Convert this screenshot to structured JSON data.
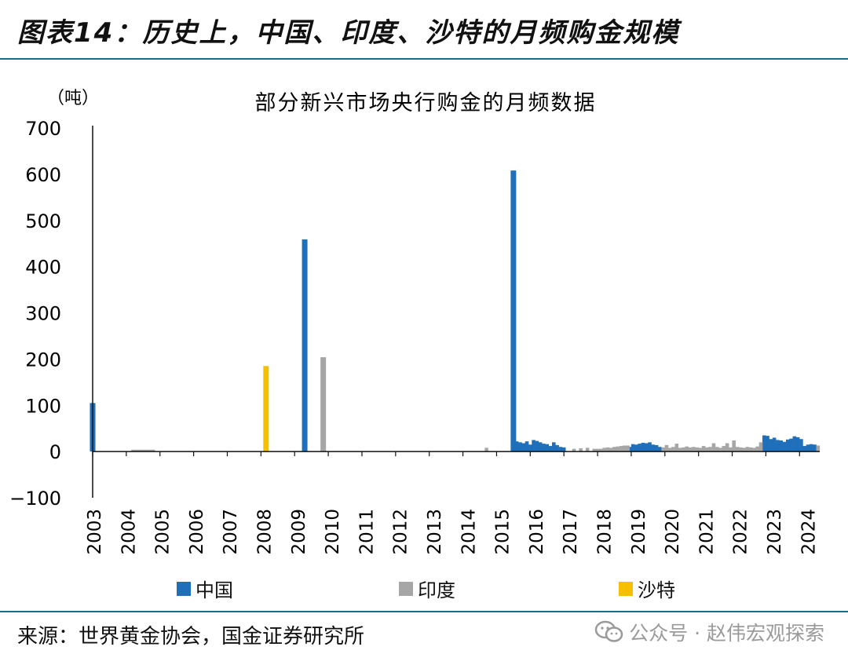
{
  "figure": {
    "title": "图表14：历史上，中国、印度、沙特的月频购金规模",
    "source": "来源：世界黄金协会，国金证券研究所",
    "watermark": "公众号 · 赵伟宏观探索"
  },
  "colors": {
    "china": "#1f6fba",
    "india": "#a6a6a6",
    "saudi": "#f5c000",
    "rule": "#1a6e8a"
  },
  "chart_data": {
    "type": "bar",
    "title": "部分新兴市场央行购金的月频数据",
    "ylabel": "（吨）",
    "xlabel": "",
    "ylim": [
      -100,
      700
    ],
    "yticks": [
      700,
      600,
      500,
      400,
      300,
      200,
      100,
      0,
      -100
    ],
    "ytick_labels": [
      "700",
      "600",
      "500",
      "400",
      "300",
      "200",
      "100",
      "0",
      "−100"
    ],
    "x_start_year": 2003,
    "x_end_year": 2024.6,
    "xtick_labels": [
      "2003",
      "2004",
      "2005",
      "2006",
      "2007",
      "2008",
      "2009",
      "2010",
      "2011",
      "2012",
      "2013",
      "2014",
      "2015",
      "2016",
      "2017",
      "2018",
      "2019",
      "2020",
      "2021",
      "2022",
      "2023",
      "2024"
    ],
    "legend": [
      "中国",
      "印度",
      "沙特"
    ],
    "series": [
      {
        "name": "中国",
        "points": [
          [
            2003.0,
            105
          ],
          [
            2009.3,
            459
          ],
          [
            2015.5,
            608
          ],
          [
            2015.6,
            22
          ],
          [
            2015.7,
            20
          ],
          [
            2015.8,
            18
          ],
          [
            2015.9,
            22
          ],
          [
            2016.0,
            15
          ],
          [
            2016.1,
            25
          ],
          [
            2016.2,
            23
          ],
          [
            2016.3,
            20
          ],
          [
            2016.4,
            17
          ],
          [
            2016.5,
            16
          ],
          [
            2016.6,
            12
          ],
          [
            2016.7,
            20
          ],
          [
            2016.8,
            14
          ],
          [
            2016.9,
            10
          ],
          [
            2017.0,
            9
          ],
          [
            2018.95,
            10
          ],
          [
            2019.05,
            16
          ],
          [
            2019.15,
            15
          ],
          [
            2019.25,
            17
          ],
          [
            2019.35,
            19
          ],
          [
            2019.45,
            18
          ],
          [
            2019.55,
            20
          ],
          [
            2019.65,
            15
          ],
          [
            2019.75,
            14
          ],
          [
            2019.85,
            10
          ],
          [
            2022.95,
            35
          ],
          [
            2023.05,
            34
          ],
          [
            2023.15,
            27
          ],
          [
            2023.25,
            30
          ],
          [
            2023.35,
            25
          ],
          [
            2023.45,
            24
          ],
          [
            2023.55,
            21
          ],
          [
            2023.65,
            26
          ],
          [
            2023.75,
            28
          ],
          [
            2023.85,
            33
          ],
          [
            2023.95,
            31
          ],
          [
            2024.05,
            27
          ],
          [
            2024.15,
            12
          ],
          [
            2024.25,
            15
          ],
          [
            2024.35,
            16
          ],
          [
            2024.45,
            15
          ]
        ]
      },
      {
        "name": "印度",
        "points": [
          [
            2004.2,
            4
          ],
          [
            2004.3,
            4
          ],
          [
            2004.4,
            4
          ],
          [
            2004.5,
            4
          ],
          [
            2004.6,
            4
          ],
          [
            2004.7,
            4
          ],
          [
            2004.8,
            4
          ],
          [
            2009.85,
            204
          ],
          [
            2014.7,
            8
          ],
          [
            2017.3,
            6
          ],
          [
            2017.5,
            7
          ],
          [
            2017.7,
            8
          ],
          [
            2017.9,
            6
          ],
          [
            2018.0,
            6
          ],
          [
            2018.1,
            6
          ],
          [
            2018.2,
            8
          ],
          [
            2018.3,
            9
          ],
          [
            2018.4,
            8
          ],
          [
            2018.5,
            10
          ],
          [
            2018.6,
            11
          ],
          [
            2018.7,
            12
          ],
          [
            2018.8,
            13
          ],
          [
            2018.9,
            13
          ],
          [
            2019.95,
            9
          ],
          [
            2020.05,
            14
          ],
          [
            2020.15,
            8
          ],
          [
            2020.25,
            10
          ],
          [
            2020.35,
            17
          ],
          [
            2020.45,
            8
          ],
          [
            2020.55,
            9
          ],
          [
            2020.65,
            11
          ],
          [
            2020.75,
            9
          ],
          [
            2020.85,
            10
          ],
          [
            2020.95,
            9
          ],
          [
            2021.05,
            8
          ],
          [
            2021.15,
            12
          ],
          [
            2021.25,
            9
          ],
          [
            2021.35,
            10
          ],
          [
            2021.45,
            18
          ],
          [
            2021.55,
            10
          ],
          [
            2021.65,
            8
          ],
          [
            2021.75,
            12
          ],
          [
            2021.85,
            18
          ],
          [
            2021.95,
            9
          ],
          [
            2022.05,
            24
          ],
          [
            2022.15,
            10
          ],
          [
            2022.25,
            9
          ],
          [
            2022.35,
            8
          ],
          [
            2022.45,
            10
          ],
          [
            2022.55,
            9
          ],
          [
            2022.65,
            8
          ],
          [
            2022.75,
            11
          ],
          [
            2022.85,
            20
          ],
          [
            2024.55,
            13
          ]
        ]
      },
      {
        "name": "沙特",
        "points": [
          [
            2008.15,
            185
          ]
        ]
      }
    ]
  }
}
